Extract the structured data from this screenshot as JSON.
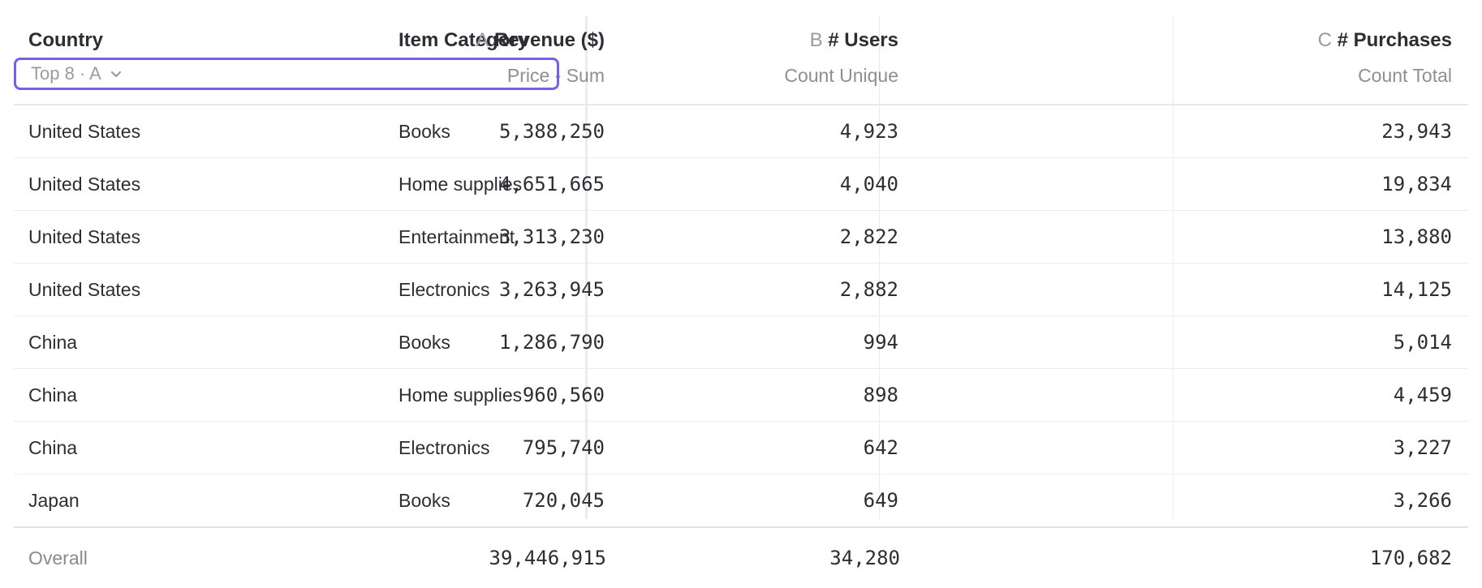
{
  "columns": {
    "country": "Country",
    "category": "Item Category",
    "revenue": {
      "letter": "A",
      "title": "Revenue ($)",
      "subtitle": "Price - Sum"
    },
    "users": {
      "letter": "B",
      "title": "# Users",
      "subtitle": "Count Unique"
    },
    "purchases": {
      "letter": "C",
      "title": "# Purchases",
      "subtitle": "Count Total"
    }
  },
  "limit_selector": {
    "label": "Top 8 · A"
  },
  "rows": [
    {
      "country": "United States",
      "category": "Books",
      "revenue": "5,388,250",
      "users": "4,923",
      "purchases": "23,943"
    },
    {
      "country": "United States",
      "category": "Home supplies",
      "revenue": "4,651,665",
      "users": "4,040",
      "purchases": "19,834"
    },
    {
      "country": "United States",
      "category": "Entertainment",
      "revenue": "3,313,230",
      "users": "2,822",
      "purchases": "13,880"
    },
    {
      "country": "United States",
      "category": "Electronics",
      "revenue": "3,263,945",
      "users": "2,882",
      "purchases": "14,125"
    },
    {
      "country": "China",
      "category": "Books",
      "revenue": "1,286,790",
      "users": "994",
      "purchases": "5,014"
    },
    {
      "country": "China",
      "category": "Home supplies",
      "revenue": "960,560",
      "users": "898",
      "purchases": "4,459"
    },
    {
      "country": "China",
      "category": "Electronics",
      "revenue": "795,740",
      "users": "642",
      "purchases": "3,227"
    },
    {
      "country": "Japan",
      "category": "Books",
      "revenue": "720,045",
      "users": "649",
      "purchases": "3,266"
    }
  ],
  "overall": {
    "label": "Overall",
    "revenue": "39,446,915",
    "users": "34,280",
    "purchases": "170,682"
  },
  "colors": {
    "accent": "#7a5cf0",
    "muted": "#9a9aa2",
    "border": "#ececf0"
  },
  "icons": {
    "limit_dropdown": "chevron-down-icon"
  }
}
